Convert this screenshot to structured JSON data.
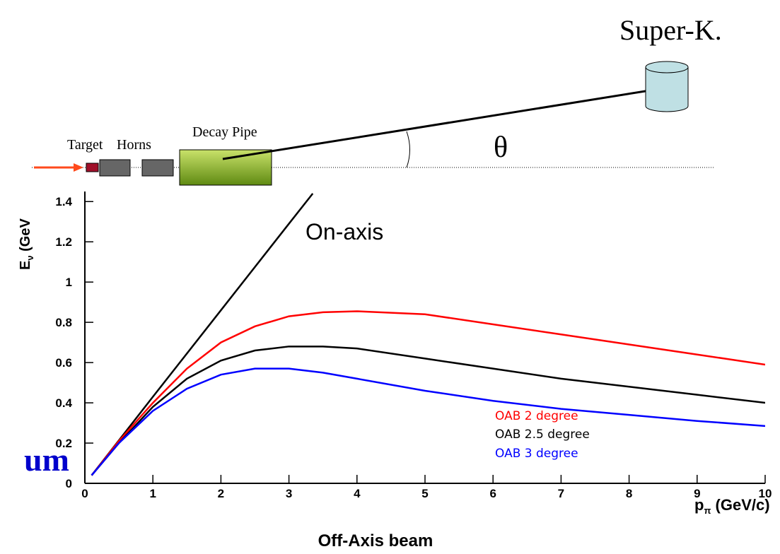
{
  "diagram": {
    "detector": "Super-K.",
    "target": "Target",
    "horns": "Horns",
    "decay_pipe": "Decay Pipe",
    "angle": "θ"
  },
  "side_text": "um",
  "chart_data": {
    "type": "line",
    "title": "Off-Axis beam",
    "xlabel": "p",
    "xlabel_sub": "π",
    "xlabel_rest": " (GeV/c)",
    "ylabel": "E",
    "ylabel_sub": "ν",
    "ylabel_rest": " (GeV",
    "xlim": [
      0,
      10
    ],
    "ylim": [
      0,
      1.45
    ],
    "xticks": [
      0,
      1,
      2,
      3,
      4,
      5,
      6,
      7,
      8,
      9,
      10
    ],
    "yticks": [
      0,
      0.2,
      0.4,
      0.6,
      0.8,
      1,
      1.2,
      1.4
    ],
    "series": [
      {
        "name": "On-axis",
        "color": "#000000",
        "x": [
          0.1,
          1,
          2,
          3,
          3.35
        ],
        "values": [
          0.04,
          0.43,
          0.86,
          1.29,
          1.44
        ]
      },
      {
        "name": "OAB 2 degree",
        "color": "#ff0000",
        "x": [
          0.1,
          0.5,
          1,
          1.5,
          2,
          2.5,
          3,
          3.5,
          4,
          5,
          6,
          7,
          8,
          9,
          10
        ],
        "values": [
          0.04,
          0.21,
          0.4,
          0.57,
          0.7,
          0.78,
          0.83,
          0.85,
          0.855,
          0.84,
          0.79,
          0.74,
          0.69,
          0.64,
          0.59
        ]
      },
      {
        "name": "OAB 2.5 degree",
        "color": "#000000",
        "x": [
          0.1,
          0.5,
          1,
          1.5,
          2,
          2.5,
          3,
          3.5,
          4,
          5,
          6,
          7,
          8,
          9,
          10
        ],
        "values": [
          0.04,
          0.2,
          0.38,
          0.52,
          0.61,
          0.66,
          0.68,
          0.68,
          0.67,
          0.62,
          0.57,
          0.52,
          0.48,
          0.44,
          0.4
        ]
      },
      {
        "name": "OAB 3 degree",
        "color": "#0000ff",
        "x": [
          0.1,
          0.5,
          1,
          1.5,
          2,
          2.5,
          3,
          3.5,
          4,
          5,
          6,
          7,
          8,
          9,
          10
        ],
        "values": [
          0.04,
          0.2,
          0.36,
          0.47,
          0.54,
          0.57,
          0.57,
          0.55,
          0.52,
          0.46,
          0.41,
          0.37,
          0.34,
          0.31,
          0.285
        ]
      }
    ]
  }
}
